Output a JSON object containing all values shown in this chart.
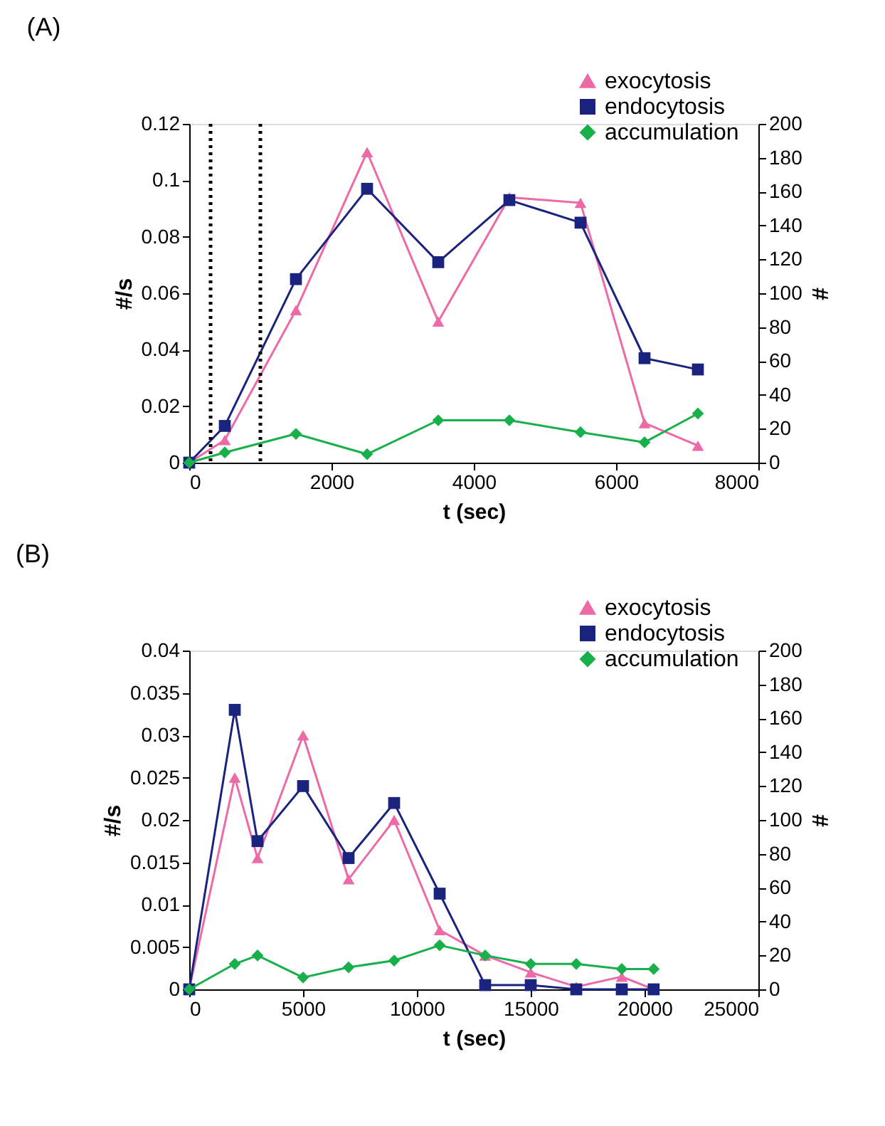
{
  "chart_data": [
    {
      "type": "line",
      "title": "(A)",
      "xlabel": "t (sec)",
      "ylabel": "#/s",
      "y2label": "#",
      "xlim": [
        0,
        8000
      ],
      "xticks": [
        0,
        2000,
        4000,
        6000,
        8000
      ],
      "ylim": [
        0,
        0.12
      ],
      "yticks": [
        0,
        0.02,
        0.04,
        0.06,
        0.08,
        0.1,
        0.12
      ],
      "y2lim": [
        0,
        200
      ],
      "y2ticks": [
        0,
        20,
        40,
        60,
        80,
        100,
        120,
        140,
        160,
        180,
        200
      ],
      "grid": false,
      "legend": "top right",
      "ref_lines": [
        {
          "axis": "x",
          "value": 300,
          "color": "#000000",
          "line_style": "dotted"
        },
        {
          "axis": "x",
          "value": 1000,
          "color": "#000000",
          "line_style": "dotted"
        }
      ],
      "series": [
        {
          "name": "exocytosis",
          "color": "#ee6aa7",
          "marker": "triangle",
          "x": [
            0,
            500,
            1500,
            2500,
            3500,
            4500,
            5500,
            6400,
            7150
          ],
          "values": [
            0,
            0.008,
            0.054,
            0.11,
            0.05,
            0.094,
            0.092,
            0.014,
            0.006
          ]
        },
        {
          "name": "endocytosis",
          "color": "#1a237e",
          "marker": "square",
          "x": [
            0,
            500,
            1500,
            2500,
            3500,
            4500,
            5500,
            6400,
            7150
          ],
          "values": [
            0,
            0.013,
            0.065,
            0.097,
            0.071,
            0.093,
            0.085,
            0.037,
            0.033
          ]
        },
        {
          "name": "accumulation",
          "color": "#18b04a",
          "marker": "diamond",
          "axis": "y2",
          "x": [
            0,
            500,
            1500,
            2500,
            3500,
            4500,
            5500,
            6400,
            7150
          ],
          "values": [
            0,
            6,
            17,
            5,
            25,
            25,
            18,
            12,
            29
          ]
        }
      ]
    },
    {
      "type": "line",
      "title": "(B)",
      "xlabel": "t (sec)",
      "ylabel": "#/s",
      "y2label": "#",
      "xlim": [
        0,
        25000
      ],
      "xticks": [
        0,
        5000,
        10000,
        15000,
        20000,
        25000
      ],
      "ylim": [
        0,
        0.04
      ],
      "yticks": [
        0,
        0.005,
        0.01,
        0.015,
        0.02,
        0.025,
        0.03,
        0.035,
        0.04
      ],
      "y2lim": [
        0,
        200
      ],
      "y2ticks": [
        0,
        20,
        40,
        60,
        80,
        100,
        120,
        140,
        160,
        180,
        200
      ],
      "grid": false,
      "legend": "top right",
      "series": [
        {
          "name": "exocytosis",
          "color": "#ee6aa7",
          "marker": "triangle",
          "x": [
            0,
            2000,
            3000,
            5000,
            7000,
            9000,
            11000,
            13000,
            15000,
            17000,
            19000,
            20400
          ],
          "values": [
            0,
            0.025,
            0.0155,
            0.03,
            0.013,
            0.02,
            0.007,
            0.004,
            0.002,
            0.0003,
            0.0015,
            0
          ]
        },
        {
          "name": "endocytosis",
          "color": "#1a237e",
          "marker": "square",
          "x": [
            0,
            2000,
            3000,
            5000,
            7000,
            9000,
            11000,
            13000,
            15000,
            17000,
            19000,
            20400
          ],
          "values": [
            0,
            0.033,
            0.0175,
            0.024,
            0.0155,
            0.022,
            0.0113,
            0.0005,
            0.0005,
            0,
            0,
            0
          ]
        },
        {
          "name": "accumulation",
          "color": "#18b04a",
          "marker": "diamond",
          "axis": "y2",
          "x": [
            0,
            2000,
            3000,
            5000,
            7000,
            9000,
            11000,
            13000,
            15000,
            17000,
            19000,
            20400
          ],
          "values": [
            0,
            15,
            20,
            7,
            13,
            17,
            26,
            20,
            15,
            15,
            12,
            12
          ]
        }
      ]
    }
  ]
}
